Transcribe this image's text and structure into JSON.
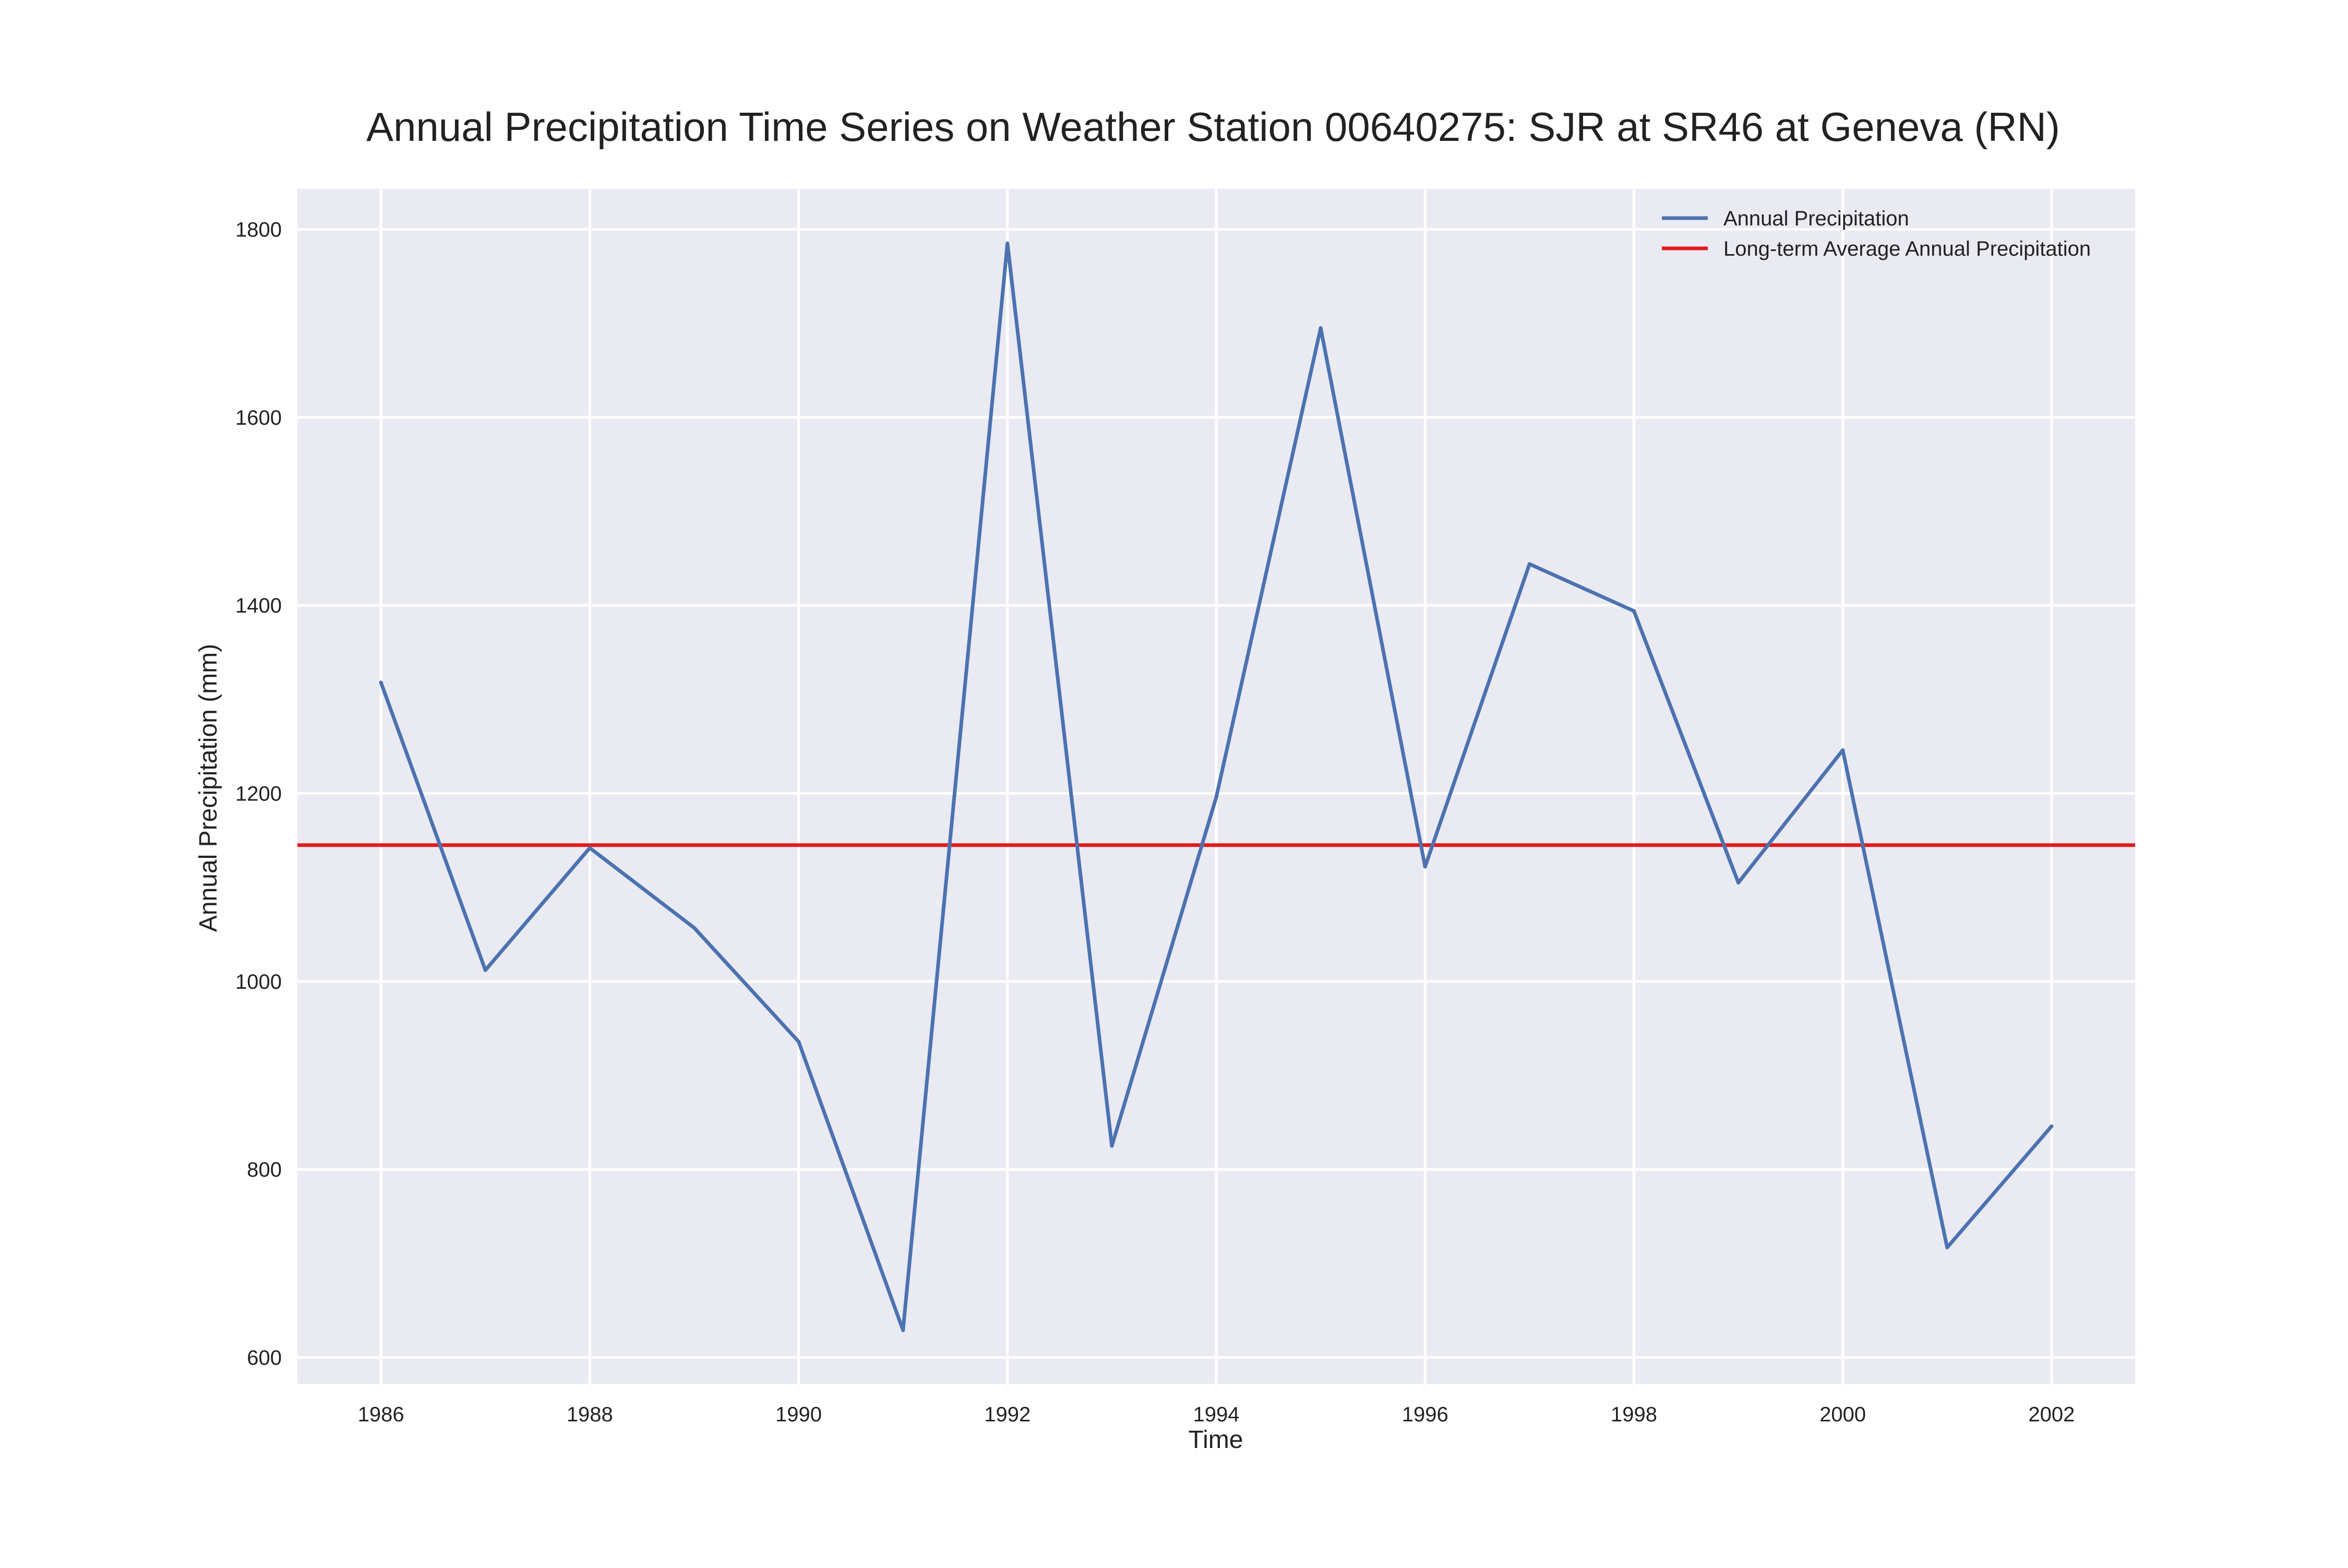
{
  "chart_data": {
    "type": "line",
    "title": "Annual Precipitation Time Series on Weather Station 00640275: SJR at SR46 at Geneva (RN)",
    "xlabel": "Time",
    "ylabel": "Annual Precipitation (mm)",
    "x": [
      1986,
      1987,
      1988,
      1989,
      1990,
      1991,
      1992,
      1993,
      1994,
      1995,
      1996,
      1997,
      1998,
      1999,
      2000,
      2001,
      2002
    ],
    "xlim": [
      1985.2,
      2002.8
    ],
    "ylim": [
      572,
      1843
    ],
    "x_ticks": [
      1986,
      1988,
      1990,
      1992,
      1994,
      1996,
      1998,
      2000,
      2002
    ],
    "x_tick_labels": [
      "1986",
      "1988",
      "1990",
      "1992",
      "1994",
      "1996",
      "1998",
      "2000",
      "2002"
    ],
    "y_ticks": [
      600,
      800,
      1000,
      1200,
      1400,
      1600,
      1800
    ],
    "y_tick_labels": [
      "600",
      "800",
      "1000",
      "1200",
      "1400",
      "1600",
      "1800"
    ],
    "series": [
      {
        "name": "Annual Precipitation",
        "color": "#4c72b0",
        "values": [
          1318,
          1012,
          1142,
          1057,
          936,
          629,
          1785,
          825,
          1196,
          1695,
          1122,
          1444,
          1394,
          1105,
          1246,
          717,
          846
        ]
      }
    ],
    "reference_lines": [
      {
        "name": "Long-term Average Annual Precipitation",
        "color": "#e41a1c",
        "y": 1145
      }
    ],
    "grid": true,
    "background": "#eaeaf2",
    "legend_position": "top-right"
  }
}
